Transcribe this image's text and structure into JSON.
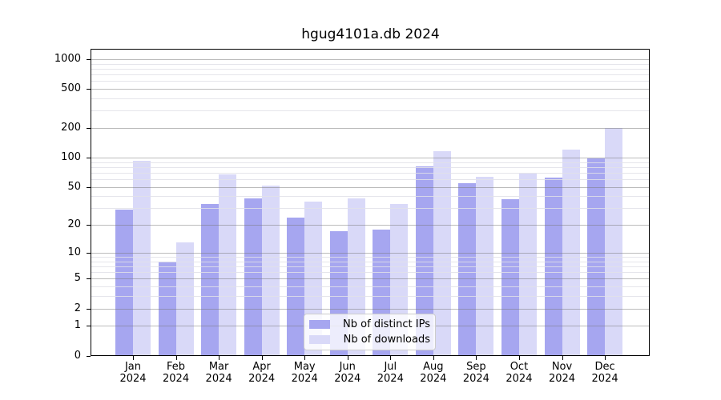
{
  "page": {
    "title": "hgug4101a.db 2024"
  },
  "chart_data": {
    "type": "bar",
    "title": "hgug4101a.db 2024",
    "year_label": "2024",
    "categories": [
      "Jan",
      "Feb",
      "Mar",
      "Apr",
      "May",
      "Jun",
      "Jul",
      "Aug",
      "Sep",
      "Oct",
      "Nov",
      "Dec"
    ],
    "series": [
      {
        "name": "Nb of distinct IPs",
        "color": "#a6a6f0",
        "values": [
          29,
          8,
          33,
          38,
          24,
          17,
          18,
          81,
          55,
          37,
          62,
          98
        ]
      },
      {
        "name": "Nb of downloads",
        "color": "#d9d9f8",
        "values": [
          93,
          13,
          67,
          52,
          35,
          38,
          33,
          115,
          63,
          68,
          120,
          200
        ]
      }
    ],
    "xlabel": "",
    "ylabel": "",
    "yscale": "log1p",
    "ylim": [
      0,
      1260
    ],
    "yticks": [
      0,
      1,
      2,
      5,
      10,
      20,
      50,
      100,
      200,
      500,
      1000
    ],
    "yminorticks": [
      3,
      4,
      6,
      7,
      8,
      9,
      30,
      40,
      60,
      70,
      80,
      90,
      300,
      400,
      600,
      700,
      800,
      900
    ],
    "grid": true,
    "legend_position": "lower center"
  }
}
